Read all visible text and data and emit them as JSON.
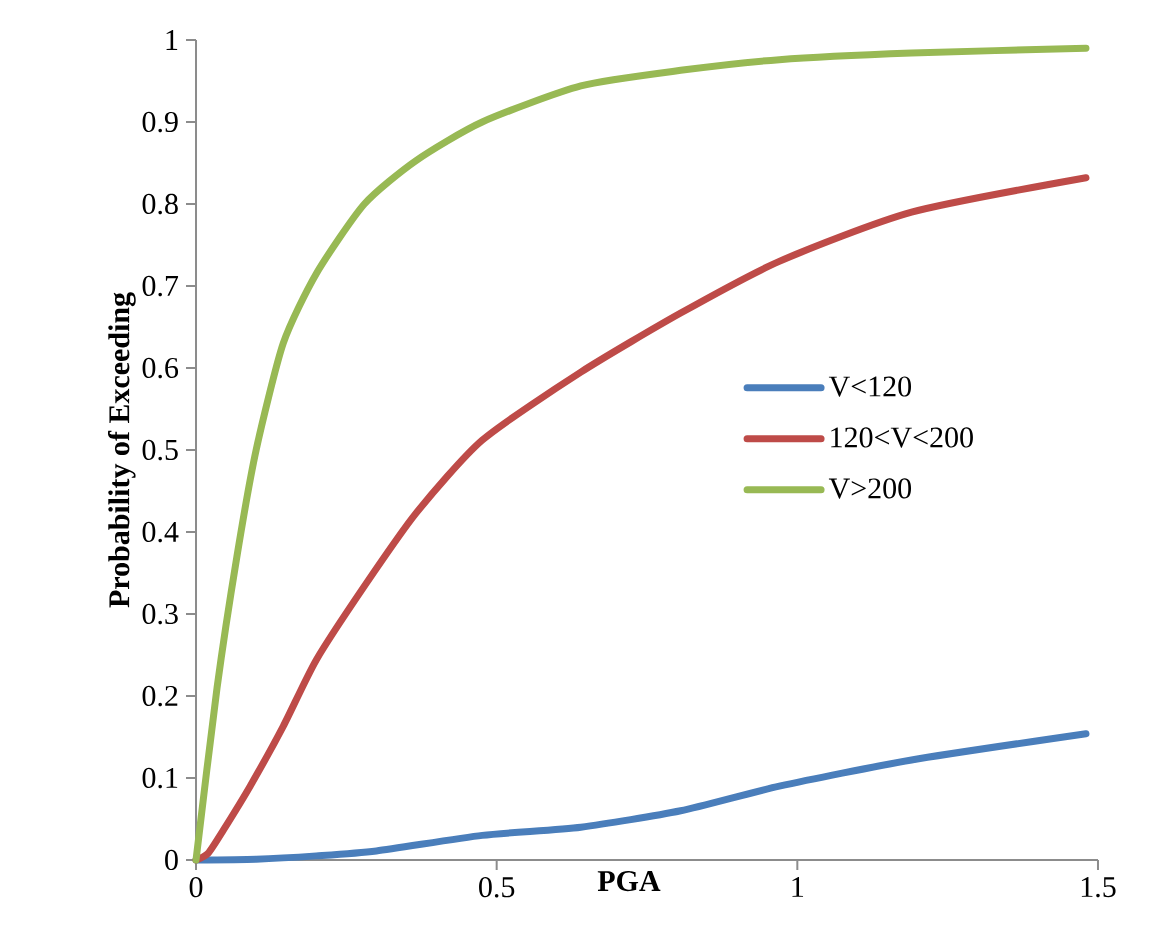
{
  "chart_data": {
    "type": "line",
    "xlabel": "PGA",
    "ylabel": "Probability of Exceeding",
    "xlim": [
      0,
      1.5
    ],
    "ylim": [
      0,
      1
    ],
    "xticks": [
      0,
      0.5,
      1,
      1.5
    ],
    "yticks": [
      0,
      0.1,
      0.2,
      0.3,
      0.4,
      0.5,
      0.6,
      0.7,
      0.8,
      0.9,
      1
    ],
    "grid": false,
    "legend": "right",
    "marker": "none",
    "line_style": "solid",
    "series": [
      {
        "name": "V<120",
        "color": "#4a7ebb",
        "x": [
          0,
          0.1,
          0.2,
          0.3,
          0.476,
          0.64,
          0.806,
          0.97,
          1.19,
          1.48
        ],
        "values": [
          0,
          0.001,
          0.005,
          0.011,
          0.03,
          0.04,
          0.06,
          0.09,
          0.122,
          0.154
        ]
      },
      {
        "name": "120<V<200",
        "color": "#be4b48",
        "x": [
          0,
          0.02,
          0.046,
          0.09,
          0.145,
          0.2,
          0.28,
          0.366,
          0.476,
          0.64,
          0.806,
          0.97,
          1.19,
          1.48
        ],
        "values": [
          0,
          0.008,
          0.037,
          0.09,
          0.163,
          0.244,
          0.334,
          0.423,
          0.512,
          0.595,
          0.667,
          0.73,
          0.79,
          0.832
        ]
      },
      {
        "name": "V>200",
        "color": "#98b954",
        "x": [
          0,
          0.035,
          0.068,
          0.1,
          0.145,
          0.2,
          0.28,
          0.366,
          0.476,
          0.64,
          0.806,
          0.97,
          1.19,
          1.48
        ],
        "values": [
          0,
          0.21,
          0.37,
          0.5,
          0.63,
          0.715,
          0.8,
          0.853,
          0.9,
          0.944,
          0.963,
          0.976,
          0.984,
          0.99
        ]
      }
    ]
  }
}
